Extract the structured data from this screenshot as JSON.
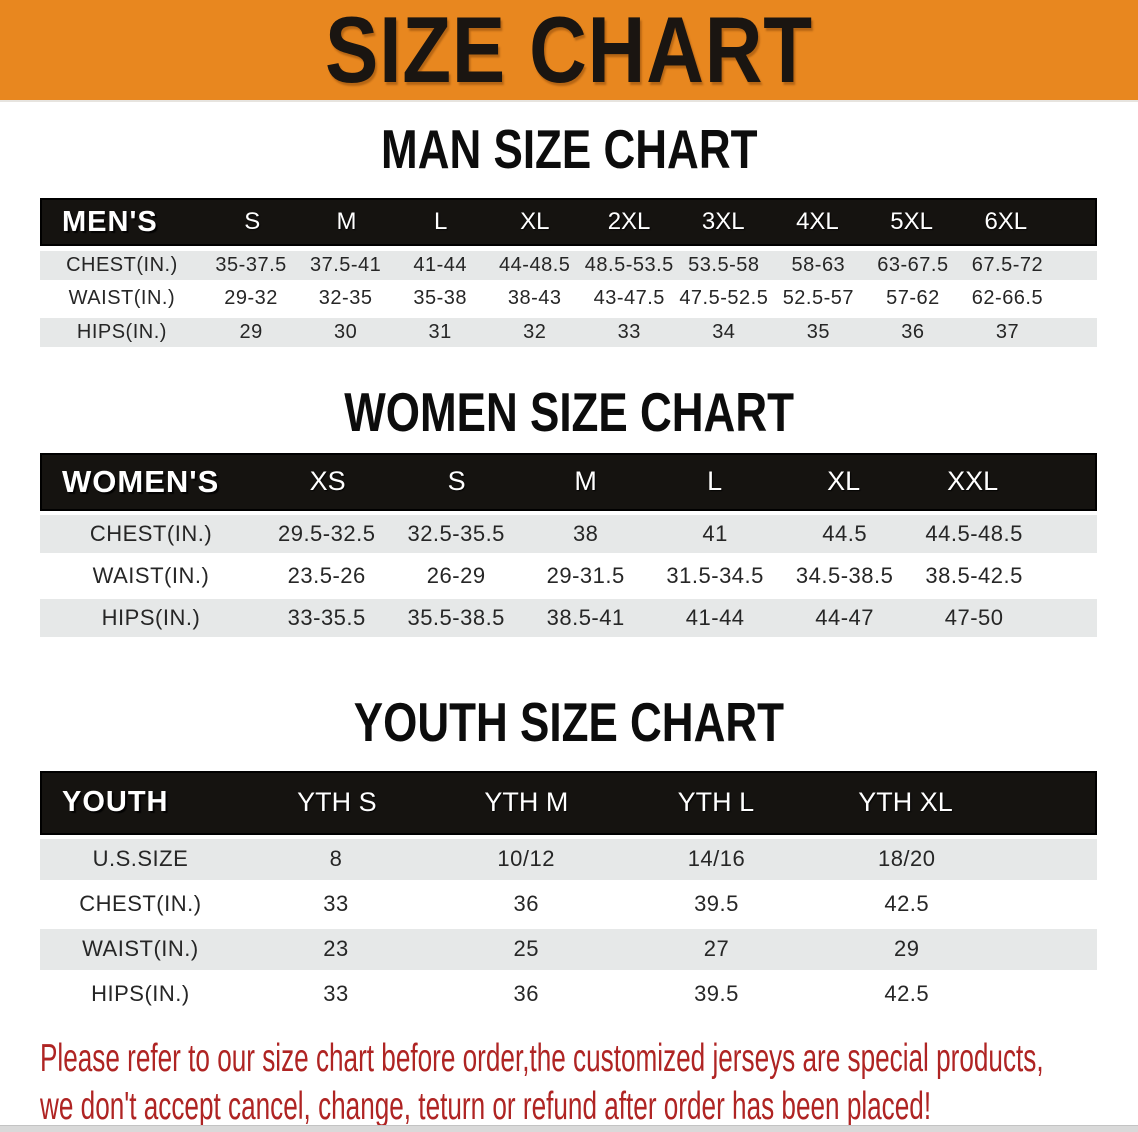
{
  "banner": {
    "title": "SIZE CHART"
  },
  "colors": {
    "banner_bg": "#E8871F",
    "header_bar_bg": "#151310",
    "row_gray": "#E6E8E8",
    "note_red": "#AF2423"
  },
  "sections": {
    "men": {
      "heading": "MAN SIZE CHART",
      "corner_label": "MEN'S",
      "sizes": [
        "S",
        "M",
        "L",
        "XL",
        "2XL",
        "3XL",
        "4XL",
        "5XL",
        "6XL"
      ],
      "rows": [
        {
          "label": "CHEST(IN.)",
          "values": [
            "35-37.5",
            "37.5-41",
            "41-44",
            "44-48.5",
            "48.5-53.5",
            "53.5-58",
            "58-63",
            "63-67.5",
            "67.5-72"
          ]
        },
        {
          "label": "WAIST(IN.)",
          "values": [
            "29-32",
            "32-35",
            "35-38",
            "38-43",
            "43-47.5",
            "47.5-52.5",
            "52.5-57",
            "57-62",
            "62-66.5"
          ]
        },
        {
          "label": "HIPS(IN.)",
          "values": [
            "29",
            "30",
            "31",
            "32",
            "33",
            "34",
            "35",
            "36",
            "37"
          ]
        }
      ]
    },
    "women": {
      "heading": "WOMEN SIZE CHART",
      "corner_label": "WOMEN'S",
      "sizes": [
        "XS",
        "S",
        "M",
        "L",
        "XL",
        "XXL"
      ],
      "rows": [
        {
          "label": "CHEST(IN.)",
          "values": [
            "29.5-32.5",
            "32.5-35.5",
            "38",
            "41",
            "44.5",
            "44.5-48.5"
          ]
        },
        {
          "label": "WAIST(IN.)",
          "values": [
            "23.5-26",
            "26-29",
            "29-31.5",
            "31.5-34.5",
            "34.5-38.5",
            "38.5-42.5"
          ]
        },
        {
          "label": "HIPS(IN.)",
          "values": [
            "33-35.5",
            "35.5-38.5",
            "38.5-41",
            "41-44",
            "44-47",
            "47-50"
          ]
        }
      ]
    },
    "youth": {
      "heading": "YOUTH SIZE CHART",
      "corner_label": "YOUTH",
      "sizes": [
        "YTH S",
        "YTH M",
        "YTH L",
        "YTH XL"
      ],
      "rows": [
        {
          "label": "U.S.SIZE",
          "values": [
            "8",
            "10/12",
            "14/16",
            "18/20"
          ]
        },
        {
          "label": "CHEST(IN.)",
          "values": [
            "33",
            "36",
            "39.5",
            "42.5"
          ]
        },
        {
          "label": "WAIST(IN.)",
          "values": [
            "23",
            "25",
            "27",
            "29"
          ]
        },
        {
          "label": "HIPS(IN.)",
          "values": [
            "33",
            "36",
            "39.5",
            "42.5"
          ]
        }
      ]
    }
  },
  "footer": {
    "line1": "Please refer to our size chart before order,the customized jerseys are special products,",
    "line2": "we don't accept cancel, change, teturn or refund after order has been placed!"
  }
}
